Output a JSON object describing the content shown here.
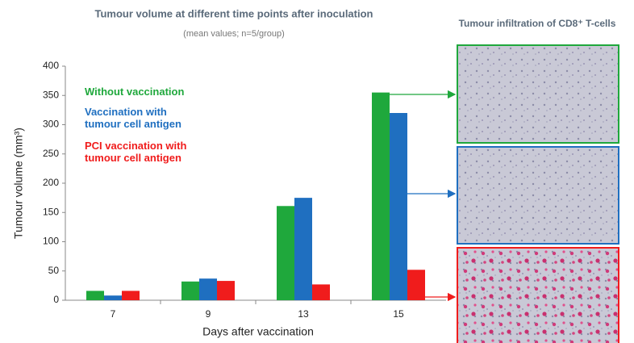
{
  "chart_data": {
    "type": "bar",
    "title": "Tumour volume at different time points after inoculation",
    "subtitle": "(mean values; n=5/group)",
    "ylabel": "Tumour volume (mm³)",
    "xlabel": "Days after vaccination",
    "image_title": "Tumour infiltration of CD8⁺ T-cells",
    "categories": [
      "7",
      "9",
      "13",
      "15"
    ],
    "series": [
      {
        "name": "Without vaccination",
        "color": "#1fa83c",
        "values": [
          16,
          32,
          161,
          355
        ]
      },
      {
        "name": "Vaccination with tumour cell antigen",
        "color": "#1f6fc0",
        "values": [
          8,
          37,
          175,
          320
        ]
      },
      {
        "name": "PCI vaccination with tumour cell antigen",
        "color": "#f01c1c",
        "values": [
          16,
          33,
          27,
          52
        ]
      }
    ],
    "ylim": [
      0,
      400
    ],
    "yticks": [
      0,
      50,
      100,
      150,
      200,
      250,
      300,
      350,
      400
    ]
  }
}
